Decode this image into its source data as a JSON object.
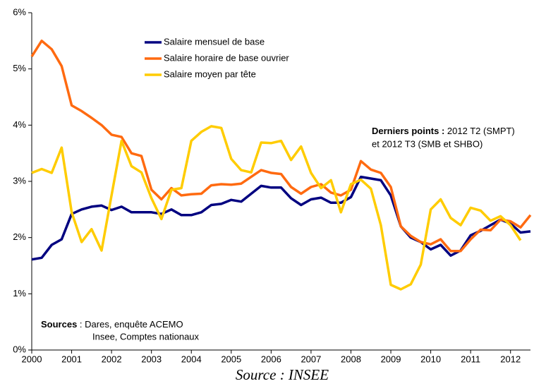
{
  "chart_data": {
    "type": "line",
    "x": [
      2000,
      2000.25,
      2000.5,
      2000.75,
      2001,
      2001.25,
      2001.5,
      2001.75,
      2002,
      2002.25,
      2002.5,
      2002.75,
      2003,
      2003.25,
      2003.5,
      2003.75,
      2004,
      2004.25,
      2004.5,
      2004.75,
      2005,
      2005.25,
      2005.5,
      2005.75,
      2006,
      2006.25,
      2006.5,
      2006.75,
      2007,
      2007.25,
      2007.5,
      2007.75,
      2008,
      2008.25,
      2008.5,
      2008.75,
      2009,
      2009.25,
      2009.5,
      2009.75,
      2010,
      2010.25,
      2010.5,
      2010.75,
      2011,
      2011.25,
      2011.5,
      2011.75,
      2012,
      2012.25,
      2012.5
    ],
    "series": [
      {
        "name": "Salaire mensuel de base",
        "color": "#000080",
        "values": [
          1.61,
          1.64,
          1.87,
          1.97,
          2.42,
          2.5,
          2.55,
          2.57,
          2.49,
          2.55,
          2.45,
          2.45,
          2.45,
          2.42,
          2.5,
          2.4,
          2.4,
          2.45,
          2.58,
          2.6,
          2.67,
          2.64,
          2.78,
          2.92,
          2.89,
          2.89,
          2.7,
          2.58,
          2.68,
          2.71,
          2.62,
          2.62,
          2.72,
          3.08,
          3.05,
          3.02,
          2.75,
          2.2,
          2.0,
          1.92,
          1.79,
          1.87,
          1.68,
          1.77,
          2.04,
          2.12,
          2.22,
          2.32,
          2.25,
          2.09,
          2.11
        ]
      },
      {
        "name": "Salaire horaire de base ouvrier",
        "color": "#ff6a10",
        "values": [
          5.22,
          5.5,
          5.35,
          5.05,
          4.35,
          4.25,
          4.13,
          4.0,
          3.83,
          3.79,
          3.5,
          3.45,
          2.85,
          2.68,
          2.88,
          2.75,
          2.77,
          2.78,
          2.93,
          2.95,
          2.94,
          2.96,
          3.08,
          3.2,
          3.15,
          3.13,
          2.9,
          2.78,
          2.9,
          2.95,
          2.8,
          2.75,
          2.85,
          3.36,
          3.21,
          3.15,
          2.9,
          2.2,
          2.03,
          1.92,
          1.88,
          1.97,
          1.76,
          1.76,
          1.97,
          2.14,
          2.13,
          2.32,
          2.29,
          2.18,
          2.4
        ]
      },
      {
        "name": "Salaire moyen par tête",
        "color": "#ffcc00",
        "values": [
          3.15,
          3.22,
          3.15,
          3.6,
          2.45,
          1.92,
          2.15,
          1.77,
          2.75,
          3.72,
          3.27,
          3.16,
          2.7,
          2.33,
          2.85,
          2.88,
          3.72,
          3.88,
          3.98,
          3.95,
          3.4,
          3.2,
          3.16,
          3.69,
          3.68,
          3.72,
          3.38,
          3.62,
          3.15,
          2.88,
          3.02,
          2.45,
          2.95,
          3.03,
          2.87,
          2.22,
          1.16,
          1.08,
          1.17,
          1.52,
          2.5,
          2.68,
          2.35,
          2.22,
          2.53,
          2.48,
          2.3,
          2.38,
          2.22,
          1.95,
          null
        ]
      }
    ],
    "xlim": [
      2000,
      2012.5
    ],
    "xticks": [
      2000,
      2001,
      2002,
      2003,
      2004,
      2005,
      2006,
      2007,
      2008,
      2009,
      2010,
      2011,
      2012
    ],
    "ylim": [
      0,
      6
    ],
    "yticks": [
      {
        "value": 0,
        "label": "0%"
      },
      {
        "value": 1,
        "label": "1%"
      },
      {
        "value": 2,
        "label": "2%"
      },
      {
        "value": 3,
        "label": "3%"
      },
      {
        "value": 4,
        "label": "4%"
      },
      {
        "value": 5,
        "label": "5%"
      },
      {
        "value": 6,
        "label": "6%"
      }
    ],
    "grid": false,
    "legend": "top",
    "annotations": [
      {
        "bold": "Derniers points :",
        "lines": [
          " 2012 T2 (SMPT)",
          "et 2012 T3 (SMB et SHBO)"
        ]
      },
      {
        "bold": "Sources",
        "lines": [
          " : Dares, enquête ACEMO",
          "Insee, Comptes nationaux"
        ]
      }
    ],
    "source": "Source : INSEE"
  }
}
